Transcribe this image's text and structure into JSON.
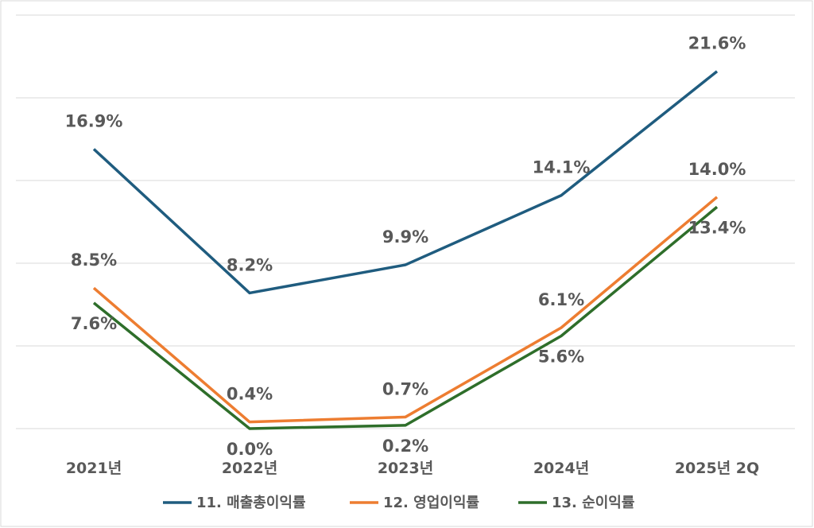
{
  "chart_data": {
    "type": "line",
    "categories": [
      "2021년",
      "2022년",
      "2023년",
      "2024년",
      "2025년 2Q"
    ],
    "series": [
      {
        "name": "11. 매출총이익률",
        "color": "#1f5c7f",
        "values": [
          16.9,
          8.2,
          9.9,
          14.1,
          21.6
        ],
        "labels": [
          "16.9%",
          "8.2%",
          "9.9%",
          "14.1%",
          "21.6%"
        ]
      },
      {
        "name": "12. 영업이익률",
        "color": "#ed7d31",
        "values": [
          8.5,
          0.4,
          0.7,
          6.1,
          14.0
        ],
        "labels": [
          "8.5%",
          "0.4%",
          "0.7%",
          "6.1%",
          "14.0%"
        ]
      },
      {
        "name": "13. 순이익률",
        "color": "#2e6e2a",
        "values": [
          7.6,
          0.0,
          0.2,
          5.6,
          13.4
        ],
        "labels": [
          "7.6%",
          "0.0%",
          "0.2%",
          "5.6%",
          "13.4%"
        ]
      }
    ],
    "ylim": [
      0,
      25
    ],
    "grid": true,
    "legend": "bottom"
  }
}
